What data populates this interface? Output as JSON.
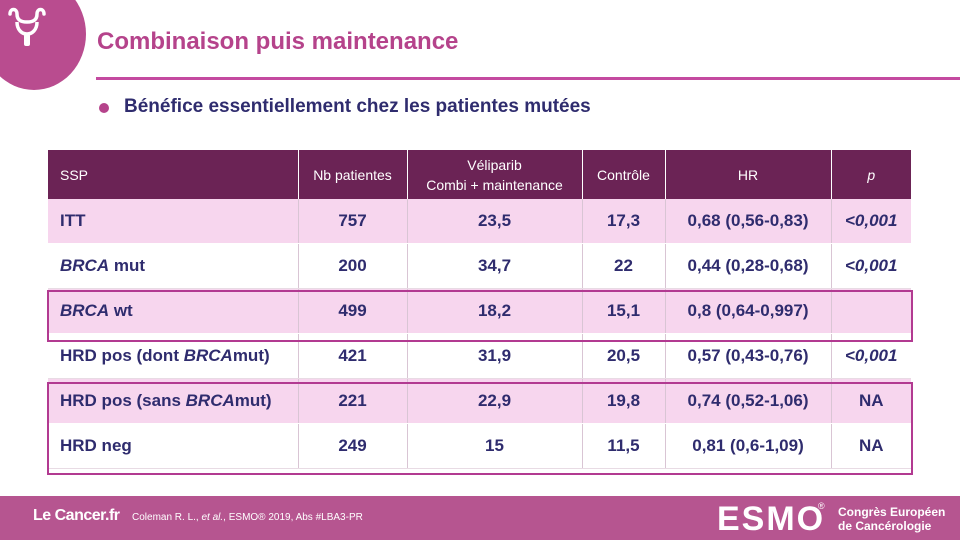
{
  "title": "Combinaison puis maintenance",
  "bullet": "Bénéfice essentiellement chez les patientes mutées",
  "table": {
    "headers": [
      "SSP",
      "Nb patientes",
      "Véliparib",
      "Combi + maintenance",
      "Contrôle",
      "HR",
      "p"
    ],
    "rows": [
      {
        "pre": "ITT",
        "it": "",
        "post": "",
        "n": "757",
        "vel": "23,5",
        "ctrl": "17,3",
        "hr": "0,68 (0,56-0,83)",
        "p": "<0,001"
      },
      {
        "pre": "",
        "it": "BRCA",
        "post": " mut",
        "n": "200",
        "vel": "34,7",
        "ctrl": "22",
        "hr": "0,44 (0,28-0,68)",
        "p": "<0,001"
      },
      {
        "pre": "",
        "it": "BRCA",
        "post": " wt",
        "n": "499",
        "vel": "18,2",
        "ctrl": "15,1",
        "hr": "0,8 (0,64-0,997)",
        "p": ""
      },
      {
        "pre": "HRD pos (dont ",
        "it": "BRCA",
        "post": "mut)",
        "n": "421",
        "vel": "31,9",
        "ctrl": "20,5",
        "hr": "0,57 (0,43-0,76)",
        "p": "<0,001"
      },
      {
        "pre": "HRD pos (sans ",
        "it": "BRCA",
        "post": "mut)",
        "n": "221",
        "vel": "22,9",
        "ctrl": "19,8",
        "hr": "0,74 (0,52-1,06)",
        "p": "NA"
      },
      {
        "pre": "HRD neg",
        "it": "",
        "post": "",
        "n": "249",
        "vel": "15",
        "ctrl": "11,5",
        "hr": "0,81 (0,6-1,09)",
        "p": "NA"
      }
    ]
  },
  "footer": {
    "brand_pre": "Le ",
    "brand_mid": "Cancer",
    "brand_post": ".fr",
    "ref_pre": "Coleman R. L., ",
    "ref_it": "et al.",
    "ref_post": ", ESMO® 2019, Abs #LBA3-PR",
    "esmo": "ESMO",
    "reg": "®",
    "congres_line1": "Congrès Européen",
    "congres_line2": "de Cancérologie"
  },
  "colors": {
    "accent": "#b5438b",
    "header_bg": "#6b2355",
    "row_pink": "#f7d6ee",
    "text_navy": "#2f2c6e",
    "footer_bg": "#b65590"
  }
}
